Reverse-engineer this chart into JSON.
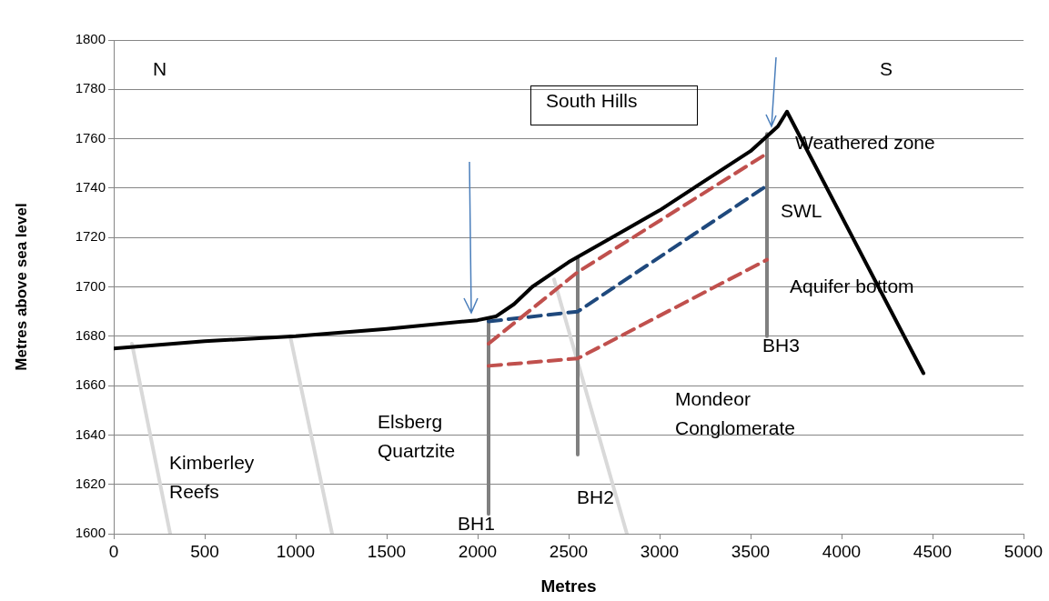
{
  "chart_data": {
    "type": "line",
    "xlabel": "Metres",
    "ylabel": "Metres above sea level",
    "xlim": [
      0,
      5000
    ],
    "xticks": [
      0,
      500,
      1000,
      1500,
      2000,
      2500,
      3000,
      3500,
      4000,
      4500,
      5000
    ],
    "ylim": [
      1600,
      1800
    ],
    "yticks": [
      1600,
      1620,
      1640,
      1660,
      1680,
      1700,
      1720,
      1740,
      1760,
      1780,
      1800
    ],
    "grid": "y",
    "legend": false,
    "marker": "none",
    "series": [
      {
        "color": "#000000",
        "x": [
          0,
          500,
          1000,
          1500,
          2000,
          2100,
          2200,
          2300,
          2500,
          3000,
          3500,
          3650,
          3700,
          4450
        ],
        "values": [
          1675,
          1678,
          1680,
          1683,
          1686.5,
          1688,
          1693,
          1700,
          1710,
          1731,
          1755,
          1765,
          1771,
          1665
        ]
      },
      {
        "color": "#c0504d",
        "line_style": "dashed",
        "x": [
          2060,
          2550,
          3590
        ],
        "values": [
          1677,
          1706,
          1754
        ]
      },
      {
        "color": "#1f497d",
        "line_style": "dashed",
        "x": [
          2060,
          2550,
          3590
        ],
        "values": [
          1686,
          1690,
          1741
        ]
      },
      {
        "color": "#c0504d",
        "line_style": "dashed",
        "x": [
          2060,
          2550,
          3590
        ],
        "values": [
          1668,
          1671,
          1711
        ]
      },
      {
        "color": "#808080",
        "x": [
          2060,
          2060
        ],
        "values": [
          1687,
          1608
        ]
      },
      {
        "color": "#808080",
        "x": [
          2550,
          2550
        ],
        "values": [
          1712,
          1632
        ]
      },
      {
        "color": "#808080",
        "x": [
          3590,
          3590
        ],
        "values": [
          1762,
          1680
        ]
      },
      {
        "color": "#d9d9d9",
        "x": [
          100,
          310
        ],
        "values": [
          1677,
          1600
        ]
      },
      {
        "color": "#d9d9d9",
        "x": [
          970,
          1200
        ],
        "values": [
          1680,
          1600
        ]
      },
      {
        "color": "#d9d9d9",
        "x": [
          2420,
          2820
        ],
        "values": [
          1703,
          1600
        ]
      }
    ],
    "annotations": [
      "N",
      "S",
      "South Hills",
      "Weathered zone",
      "SWL",
      "Aquifer bottom",
      "BH3",
      "Mondeor\nConglomerate",
      "Elsberg\nQuartzite",
      "Kimberley\nReefs",
      "BH1",
      "BH2"
    ]
  }
}
